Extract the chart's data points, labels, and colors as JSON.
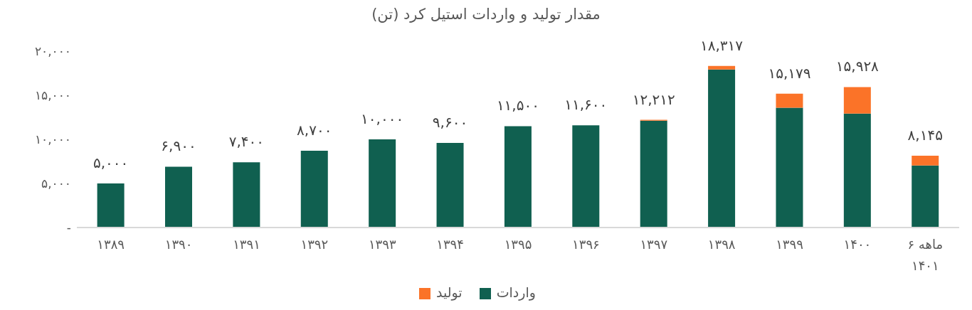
{
  "chart_data": {
    "type": "bar",
    "title": "مقدار تولید و واردات استیل کرد (تن)",
    "stacked": true,
    "categories": [
      "۱۳۸۹",
      "۱۳۹۰",
      "۱۳۹۱",
      "۱۳۹۲",
      "۱۳۹۳",
      "۱۳۹۴",
      "۱۳۹۵",
      "۱۳۹۶",
      "۱۳۹۷",
      "۱۳۹۸",
      "۱۳۹۹",
      "۱۴۰۰",
      "۶ ماهه ۱۴۰۱"
    ],
    "series": [
      {
        "name": "واردات",
        "color": "#106050",
        "values": [
          5000,
          6900,
          7400,
          8700,
          10000,
          9600,
          11500,
          11600,
          12112,
          17917,
          13579,
          12928,
          7045
        ]
      },
      {
        "name": "تولید",
        "color": "#fb7328",
        "values": [
          null,
          null,
          null,
          null,
          null,
          null,
          null,
          null,
          100,
          400,
          1600,
          3000,
          1100
        ]
      }
    ],
    "totals": [
      "۵,۰۰۰",
      "۶,۹۰۰",
      "۷,۴۰۰",
      "۸,۷۰۰",
      "۱۰,۰۰۰",
      "۹,۶۰۰",
      "۱۱,۵۰۰",
      "۱۱,۶۰۰",
      "۱۲,۲۱۲",
      "۱۸,۳۱۷",
      "۱۵,۱۷۹",
      "۱۵,۹۲۸",
      "۸,۱۴۵"
    ],
    "ylim": [
      0,
      20000
    ],
    "yticks": [
      {
        "value": 0,
        "label": "-"
      },
      {
        "value": 5000,
        "label": "۵,۰۰۰"
      },
      {
        "value": 10000,
        "label": "۱۰,۰۰۰"
      },
      {
        "value": 15000,
        "label": "۱۵,۰۰۰"
      },
      {
        "value": 20000,
        "label": "۲۰,۰۰۰"
      }
    ],
    "grid": false,
    "legend": "bottom"
  }
}
